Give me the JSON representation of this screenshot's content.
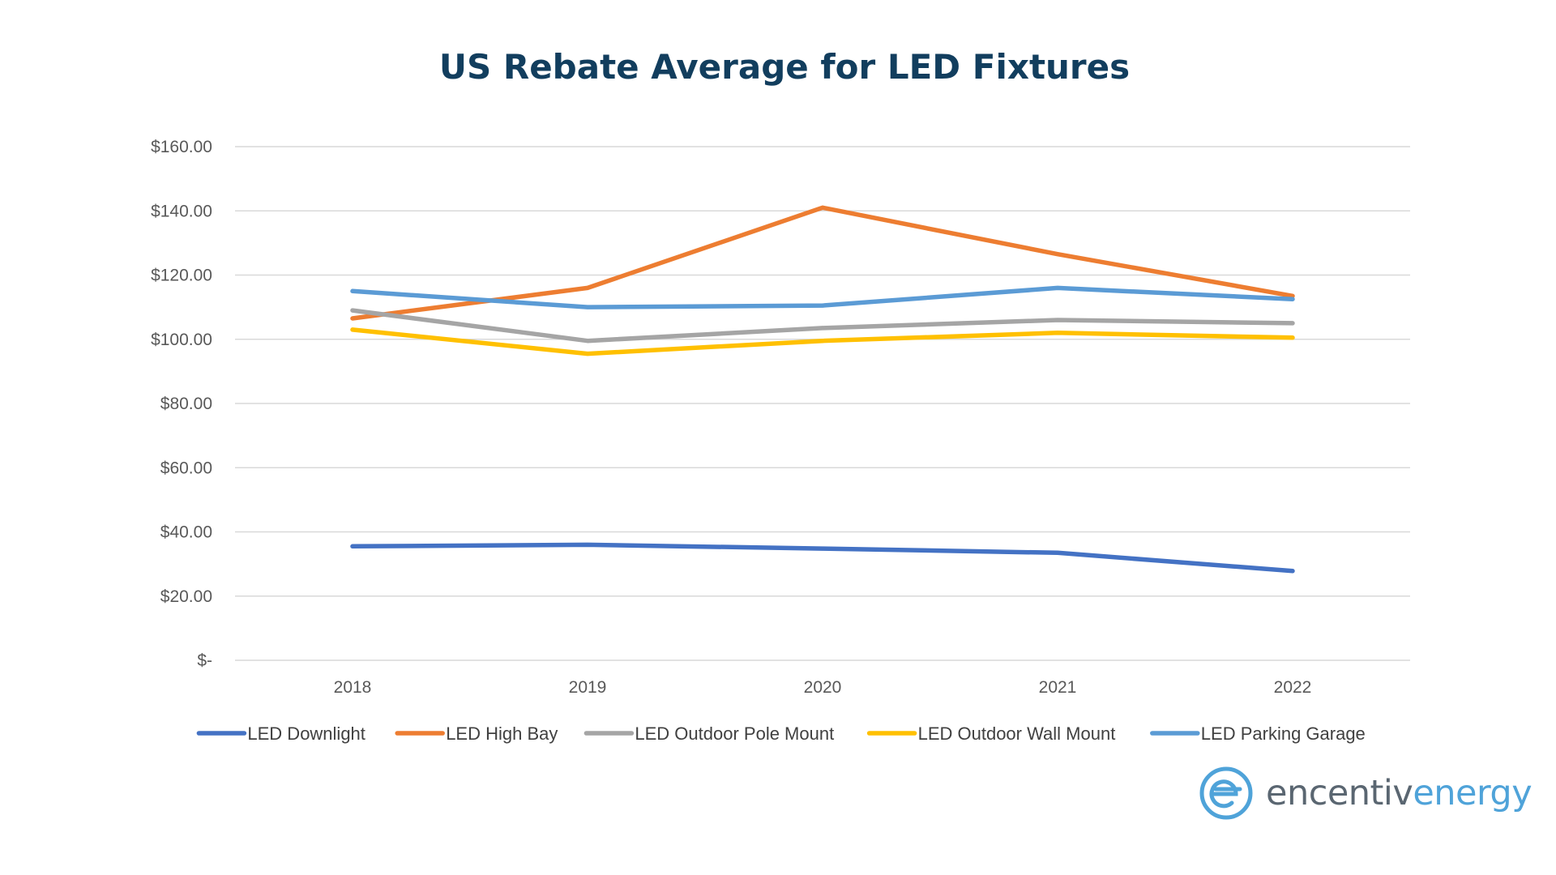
{
  "chart_data": {
    "type": "line",
    "title": "US Rebate Average for LED Fixtures",
    "xlabel": "",
    "ylabel": "",
    "x": [
      "2018",
      "2019",
      "2020",
      "2021",
      "2022"
    ],
    "ylim": [
      0,
      160
    ],
    "yticks": [
      0,
      20,
      40,
      60,
      80,
      100,
      120,
      140,
      160
    ],
    "ytick_labels": [
      "$-",
      "$20.00",
      "$40.00",
      "$60.00",
      "$80.00",
      "$100.00",
      "$120.00",
      "$140.00",
      "$160.00"
    ],
    "grid": true,
    "legend_position": "bottom",
    "series": [
      {
        "name": "LED Downlight",
        "color": "#4472c4",
        "values": [
          35.5,
          36.0,
          34.8,
          33.5,
          27.8
        ]
      },
      {
        "name": "LED High Bay",
        "color": "#ed7d31",
        "values": [
          106.5,
          116.0,
          141.0,
          126.5,
          113.5
        ]
      },
      {
        "name": "LED Outdoor Pole Mount",
        "color": "#a5a5a5",
        "values": [
          109.0,
          99.5,
          103.5,
          106.0,
          105.0
        ]
      },
      {
        "name": "LED Outdoor Wall Mount",
        "color": "#ffc000",
        "values": [
          103.0,
          95.5,
          99.5,
          102.0,
          100.5
        ]
      },
      {
        "name": "LED Parking Garage",
        "color": "#5b9bd5",
        "values": [
          115.0,
          110.0,
          110.5,
          116.0,
          112.5
        ]
      }
    ]
  },
  "logo": {
    "word1": "encentiv",
    "word2": "energy",
    "color_primary": "#5a6671",
    "color_accent": "#4fa3d9"
  }
}
